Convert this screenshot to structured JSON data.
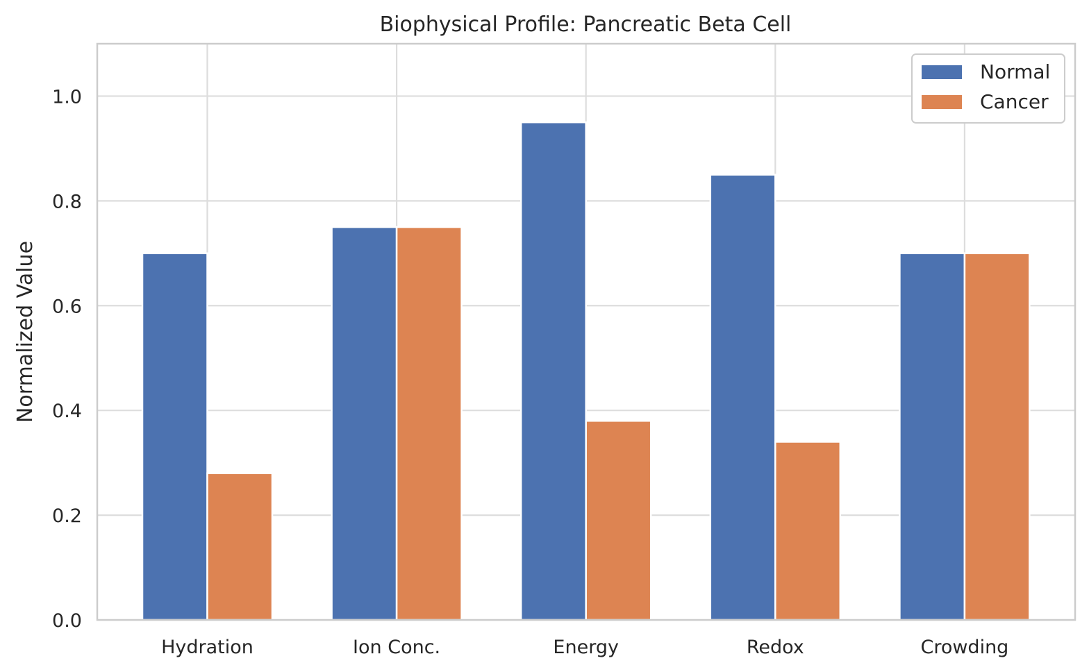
{
  "chart_data": {
    "type": "bar",
    "title": "Biophysical Profile: Pancreatic Beta Cell",
    "xlabel": "",
    "ylabel": "Normalized Value",
    "categories": [
      "Hydration",
      "Ion Conc.",
      "Energy",
      "Redox",
      "Crowding"
    ],
    "series": [
      {
        "name": "Normal",
        "color": "#4c72b0",
        "values": [
          0.7,
          0.75,
          0.95,
          0.85,
          0.7
        ]
      },
      {
        "name": "Cancer",
        "color": "#dd8452",
        "values": [
          0.28,
          0.75,
          0.38,
          0.34,
          0.7
        ]
      }
    ],
    "ylim": [
      0,
      1.1
    ],
    "yticks": [
      0.0,
      0.2,
      0.4,
      0.6,
      0.8,
      1.0
    ],
    "ytick_labels": [
      "0.0",
      "0.2",
      "0.4",
      "0.6",
      "0.8",
      "1.0"
    ],
    "grid": true,
    "legend_position": "top-right"
  }
}
